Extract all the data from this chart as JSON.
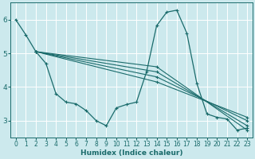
{
  "xlabel": "Humidex (Indice chaleur)",
  "background_color": "#cce9ed",
  "grid_color": "#ffffff",
  "line_color": "#1a6b6b",
  "xlim": [
    -0.5,
    23.5
  ],
  "ylim": [
    2.5,
    6.5
  ],
  "yticks": [
    3,
    4,
    5,
    6
  ],
  "xticks": [
    0,
    1,
    2,
    3,
    4,
    5,
    6,
    7,
    8,
    9,
    10,
    11,
    12,
    13,
    14,
    15,
    16,
    17,
    18,
    19,
    20,
    21,
    22,
    23
  ],
  "curve": {
    "x": [
      0,
      1,
      2,
      3,
      4,
      5,
      6,
      7,
      8,
      9,
      10,
      11,
      12,
      13,
      14,
      15,
      16,
      17,
      18,
      19,
      20,
      21,
      22,
      23
    ],
    "y": [
      6.0,
      5.55,
      5.05,
      4.7,
      3.8,
      3.55,
      3.5,
      3.3,
      3.0,
      2.85,
      3.38,
      3.48,
      3.55,
      4.45,
      5.82,
      6.22,
      6.28,
      5.6,
      4.1,
      3.2,
      3.1,
      3.05,
      2.72,
      2.78
    ]
  },
  "fan_lines": [
    {
      "x": [
        2,
        14,
        23
      ],
      "y": [
        5.05,
        4.6,
        2.72
      ]
    },
    {
      "x": [
        2,
        14,
        23
      ],
      "y": [
        5.05,
        4.45,
        2.85
      ]
    },
    {
      "x": [
        2,
        14,
        23
      ],
      "y": [
        5.05,
        4.3,
        3.0
      ]
    },
    {
      "x": [
        2,
        14,
        23
      ],
      "y": [
        5.05,
        4.15,
        3.1
      ]
    }
  ]
}
